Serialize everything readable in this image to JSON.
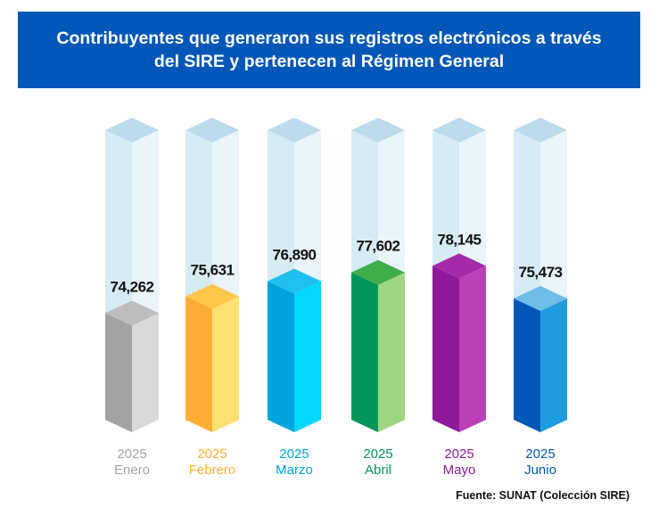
{
  "chart_data": {
    "type": "bar3d",
    "title": "Contribuyentes que generaron sus registros electrónicos a través del SIRE y pertenecen al Régimen General",
    "categories": [
      [
        "2025",
        "Enero"
      ],
      [
        "2025",
        "Febrero"
      ],
      [
        "2025",
        "Marzo"
      ],
      [
        "2025",
        "Abril"
      ],
      [
        "2025",
        "Mayo"
      ],
      [
        "2025",
        "Junio"
      ]
    ],
    "values": [
      74262,
      75631,
      76890,
      77602,
      78145,
      75473
    ],
    "value_labels": [
      "74,262",
      "75,631",
      "76,890",
      "77,602",
      "78,145",
      "75,473"
    ],
    "colors": [
      "#a3a3a3",
      "#ffad33",
      "#00a3df",
      "#00965a",
      "#8e1a9a",
      "#0057b8"
    ],
    "colors_light": [
      "#d9d9d9",
      "#ffe070",
      "#00d8ff",
      "#9fd684",
      "#bc40b8",
      "#1f9be0"
    ],
    "colors_top": [
      "#bdbdbd",
      "#ffc84a",
      "#1fc0f0",
      "#3fae4a",
      "#a52aa8",
      "#6fbde9"
    ],
    "ylim": [
      65500,
      89300
    ],
    "source": "Fuente: SUNAT (Colección SIRE)"
  }
}
